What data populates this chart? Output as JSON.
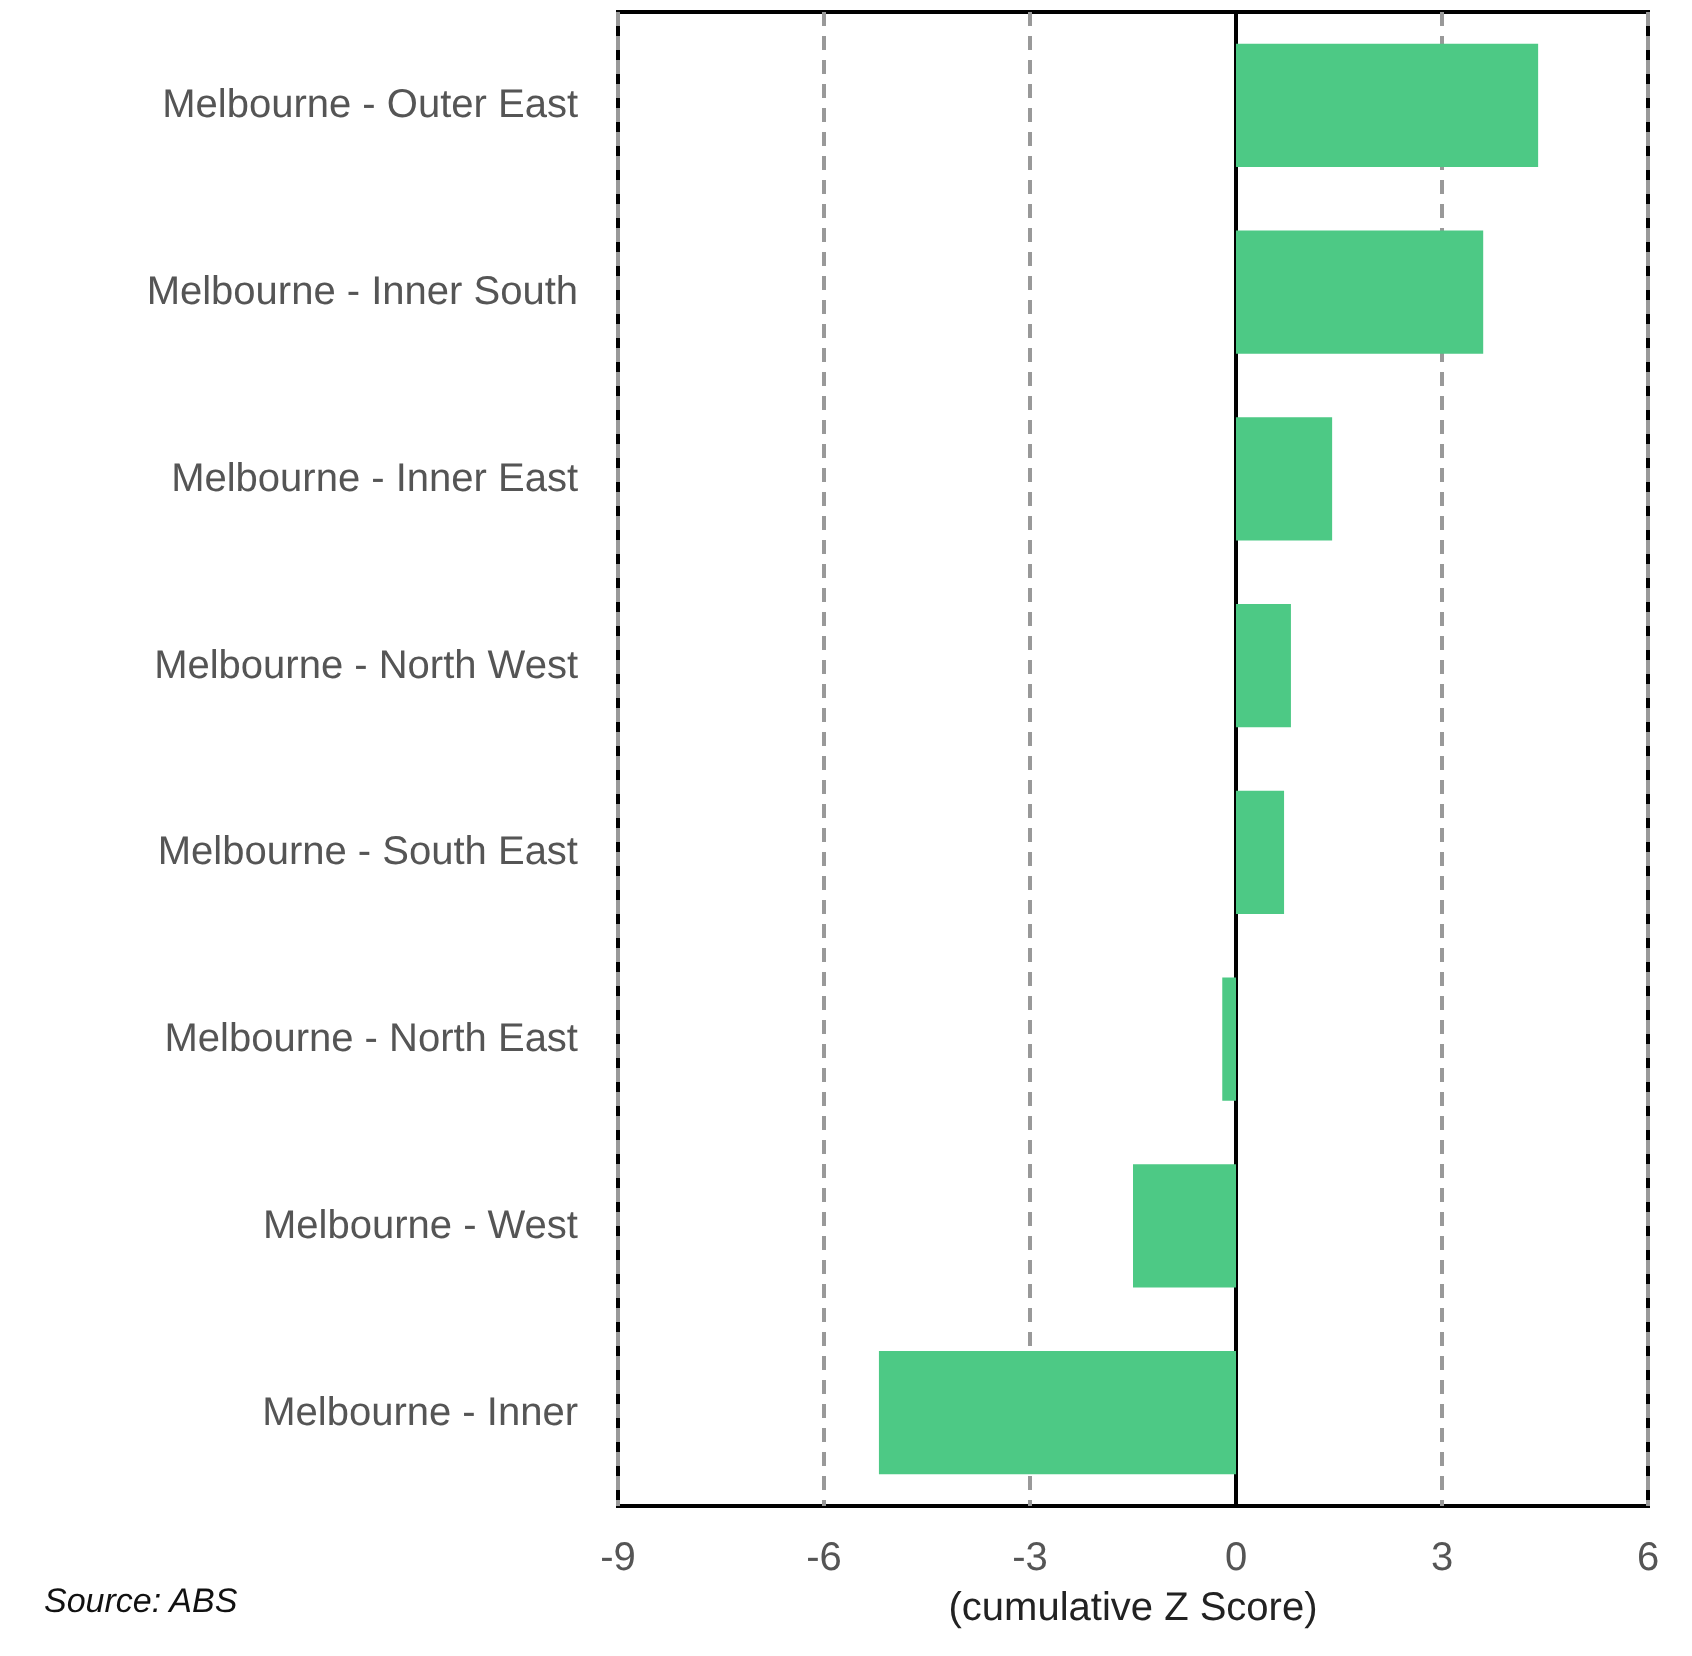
{
  "chart_data": {
    "type": "bar",
    "orientation": "horizontal",
    "categories": [
      "Melbourne - Outer East",
      "Melbourne - Inner South",
      "Melbourne - Inner East",
      "Melbourne - North West",
      "Melbourne - South East",
      "Melbourne - North East",
      "Melbourne - West",
      "Melbourne - Inner"
    ],
    "values": [
      4.4,
      3.6,
      1.4,
      0.8,
      0.7,
      -0.2,
      -1.5,
      -5.2
    ],
    "color": "#4dc985",
    "xlabel": "(cumulative Z Score)",
    "xlim": [
      -9,
      6
    ],
    "xticks": [
      -9,
      -6,
      -3,
      0,
      3,
      6
    ],
    "grid": "x",
    "annotations": [
      "Source: ABS"
    ]
  }
}
